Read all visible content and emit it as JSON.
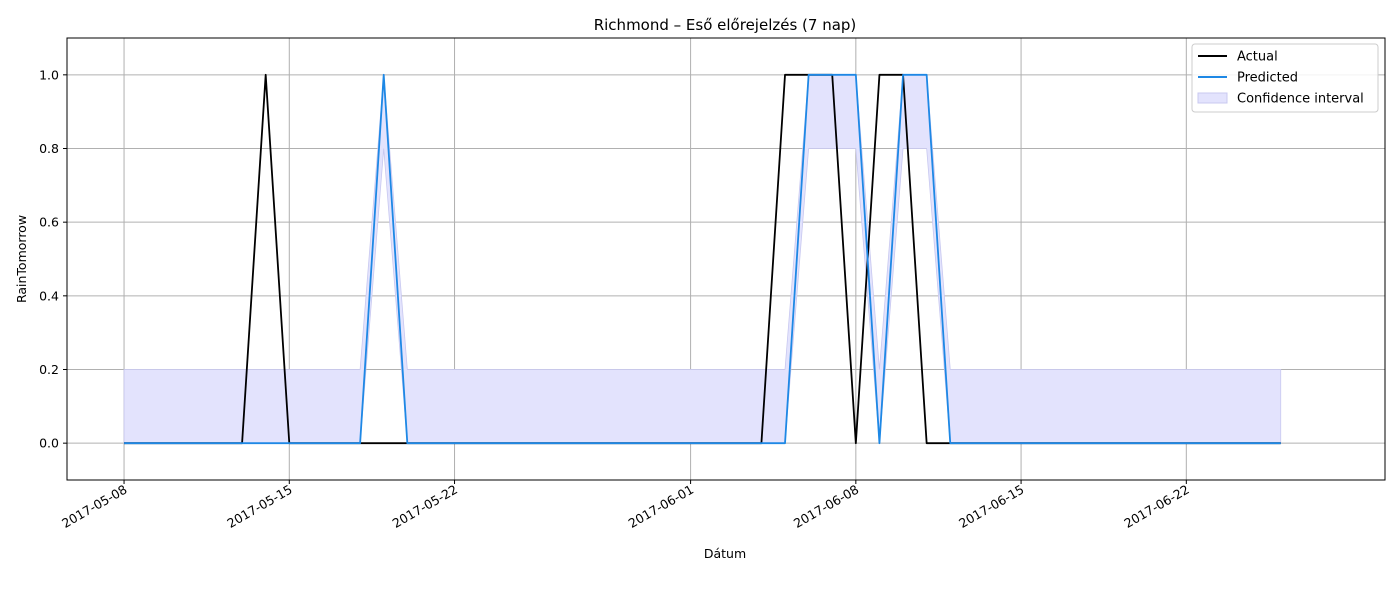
{
  "chart_data": {
    "type": "line",
    "title": "Richmond – Eső előrejelzés (7 nap)",
    "xlabel": "Dátum",
    "ylabel": "RainTomorrow",
    "xlim": [
      "2017-05-05T14:00",
      "2017-06-30T10:00"
    ],
    "ylim": [
      -0.1,
      1.1
    ],
    "x_ticks": [
      "2017-05-08",
      "2017-05-15",
      "2017-05-22",
      "2017-06-01",
      "2017-06-08",
      "2017-06-15",
      "2017-06-22"
    ],
    "y_ticks": [
      "0.0",
      "0.2",
      "0.4",
      "0.6",
      "0.8",
      "1.0"
    ],
    "grid": true,
    "legend_position": "top-right",
    "colors": {
      "actual": "#000000",
      "predicted": "#1e88e5",
      "confidence": "#e3e3fd",
      "confidence_edge": "#c8c8f0"
    },
    "series": [
      {
        "name": "Actual",
        "color": "#000000",
        "points": [
          [
            "2017-05-08",
            0
          ],
          [
            "2017-05-13",
            0
          ],
          [
            "2017-05-14",
            1
          ],
          [
            "2017-05-15",
            0
          ],
          [
            "2017-06-04",
            0
          ],
          [
            "2017-06-05",
            1
          ],
          [
            "2017-06-06",
            1
          ],
          [
            "2017-06-07",
            1
          ],
          [
            "2017-06-08",
            0
          ],
          [
            "2017-06-09",
            1
          ],
          [
            "2017-06-10",
            1
          ],
          [
            "2017-06-11",
            0
          ],
          [
            "2017-06-12",
            0
          ],
          [
            "2017-06-26",
            0
          ]
        ]
      },
      {
        "name": "Predicted",
        "color": "#1e88e5",
        "points": [
          [
            "2017-05-08",
            0
          ],
          [
            "2017-05-18",
            0
          ],
          [
            "2017-05-19",
            1
          ],
          [
            "2017-05-20",
            0
          ],
          [
            "2017-06-05",
            0
          ],
          [
            "2017-06-06",
            1
          ],
          [
            "2017-06-07",
            1
          ],
          [
            "2017-06-08",
            1
          ],
          [
            "2017-06-09",
            0
          ],
          [
            "2017-06-10",
            1
          ],
          [
            "2017-06-11",
            1
          ],
          [
            "2017-06-12",
            0
          ],
          [
            "2017-06-26",
            0
          ]
        ]
      }
    ],
    "confidence_interval": {
      "name": "Confidence interval",
      "lower": [
        [
          "2017-05-08",
          0
        ],
        [
          "2017-05-18",
          0
        ],
        [
          "2017-05-19",
          0.8
        ],
        [
          "2017-05-20",
          0
        ],
        [
          "2017-06-05",
          0
        ],
        [
          "2017-06-06",
          0.8
        ],
        [
          "2017-06-07",
          0.8
        ],
        [
          "2017-06-08",
          0.8
        ],
        [
          "2017-06-09",
          0
        ],
        [
          "2017-06-10",
          0.8
        ],
        [
          "2017-06-11",
          0.8
        ],
        [
          "2017-06-12",
          0
        ],
        [
          "2017-06-26",
          0
        ]
      ],
      "upper": [
        [
          "2017-05-08",
          0.2
        ],
        [
          "2017-05-18",
          0.2
        ],
        [
          "2017-05-19",
          1
        ],
        [
          "2017-05-20",
          0.2
        ],
        [
          "2017-06-05",
          0.2
        ],
        [
          "2017-06-06",
          1
        ],
        [
          "2017-06-07",
          1
        ],
        [
          "2017-06-08",
          1
        ],
        [
          "2017-06-09",
          0.2
        ],
        [
          "2017-06-10",
          1
        ],
        [
          "2017-06-11",
          1
        ],
        [
          "2017-06-12",
          0.2
        ],
        [
          "2017-06-26",
          0.2
        ]
      ]
    }
  }
}
